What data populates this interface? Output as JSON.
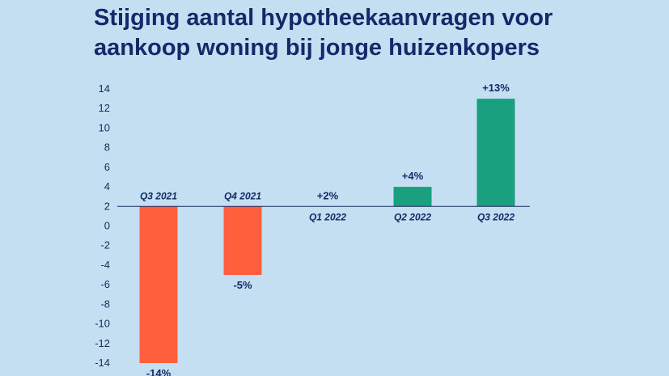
{
  "chart_data": {
    "type": "bar",
    "title_lines": [
      "Stijging aantal hypotheekaanvragen voor",
      "aankoop woning bij jonge huizenkopers"
    ],
    "categories": [
      "Q3 2021",
      "Q4 2021",
      "Q1 2022",
      "Q2 2022",
      "Q3 2022"
    ],
    "values": [
      -14,
      -5,
      2,
      4,
      13
    ],
    "data_labels": [
      "-14%",
      "-5%",
      "+2%",
      "+4%",
      "+13%"
    ],
    "ylim": [
      -14,
      14
    ],
    "yticks": [
      14,
      12,
      10,
      8,
      6,
      4,
      2,
      0,
      -2,
      -4,
      -6,
      -8,
      -10,
      -12,
      -14
    ],
    "grid": false,
    "colors": {
      "negative": "#ff5f3c",
      "positive": "#1a9f7f",
      "baseline": "#1a2a5e",
      "text": "#14296a"
    }
  }
}
